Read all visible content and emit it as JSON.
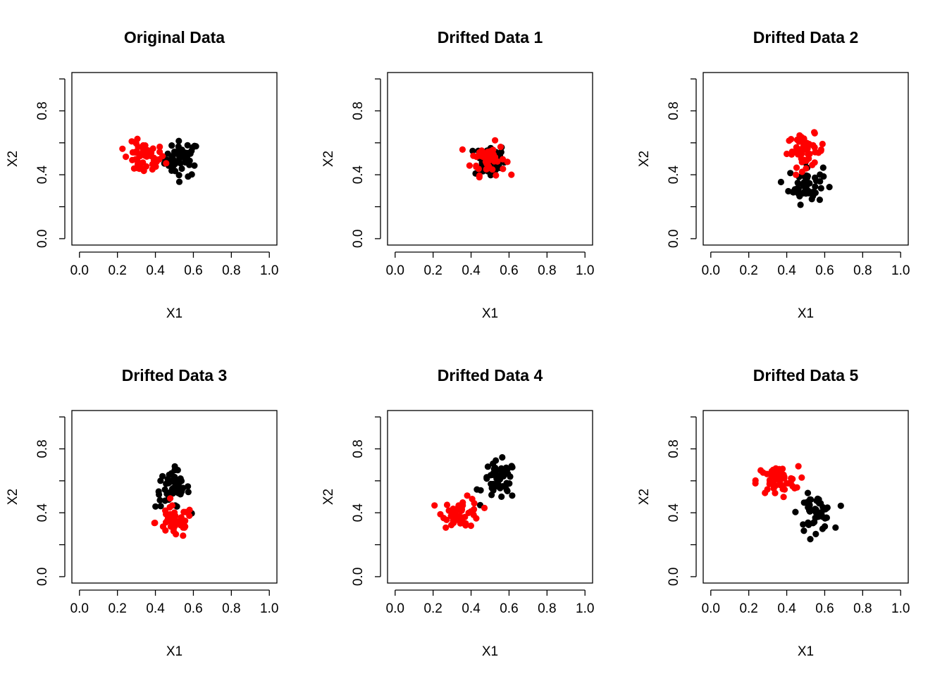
{
  "chart_data": [
    {
      "type": "scatter",
      "title": "Original Data",
      "xlabel": "X1",
      "ylabel": "X2",
      "xlim": [
        -0.04,
        1.04
      ],
      "ylim": [
        -0.04,
        1.04
      ],
      "xticks": [
        "0.0",
        "0.2",
        "0.4",
        "0.6",
        "0.8",
        "1.0"
      ],
      "yticks": [
        "0.0",
        "0.4",
        "0.8"
      ],
      "grid": false,
      "series": [
        {
          "color": "#000000",
          "center": [
            0.54,
            0.5
          ],
          "spread": [
            0.045,
            0.055
          ]
        },
        {
          "color": "#ff0000",
          "center": [
            0.34,
            0.5
          ],
          "spread": [
            0.055,
            0.05
          ]
        }
      ]
    },
    {
      "type": "scatter",
      "title": "Drifted Data 1",
      "xlabel": "X1",
      "ylabel": "X2",
      "xlim": [
        -0.04,
        1.04
      ],
      "ylim": [
        -0.04,
        1.04
      ],
      "xticks": [
        "0.0",
        "0.2",
        "0.4",
        "0.6",
        "0.8",
        "1.0"
      ],
      "yticks": [
        "0.0",
        "0.4",
        "0.8"
      ],
      "grid": false,
      "series": [
        {
          "color": "#000000",
          "center": [
            0.5,
            0.49
          ],
          "spread": [
            0.04,
            0.055
          ]
        },
        {
          "color": "#ff0000",
          "center": [
            0.49,
            0.5
          ],
          "spread": [
            0.045,
            0.05
          ]
        }
      ]
    },
    {
      "type": "scatter",
      "title": "Drifted Data 2",
      "xlabel": "X1",
      "ylabel": "X2",
      "xlim": [
        -0.04,
        1.04
      ],
      "ylim": [
        -0.04,
        1.04
      ],
      "xticks": [
        "0.0",
        "0.2",
        "0.4",
        "0.6",
        "0.8",
        "1.0"
      ],
      "yticks": [
        "0.0",
        "0.4",
        "0.8"
      ],
      "grid": false,
      "series": [
        {
          "color": "#000000",
          "center": [
            0.5,
            0.34
          ],
          "spread": [
            0.045,
            0.06
          ]
        },
        {
          "color": "#ff0000",
          "center": [
            0.5,
            0.55
          ],
          "spread": [
            0.05,
            0.05
          ]
        }
      ]
    },
    {
      "type": "scatter",
      "title": "Drifted Data 3",
      "xlabel": "X1",
      "ylabel": "X2",
      "xlim": [
        -0.04,
        1.04
      ],
      "ylim": [
        -0.04,
        1.04
      ],
      "xticks": [
        "0.0",
        "0.2",
        "0.4",
        "0.6",
        "0.8",
        "1.0"
      ],
      "yticks": [
        "0.0",
        "0.4",
        "0.8"
      ],
      "grid": false,
      "series": [
        {
          "color": "#000000",
          "center": [
            0.49,
            0.55
          ],
          "spread": [
            0.045,
            0.06
          ]
        },
        {
          "color": "#ff0000",
          "center": [
            0.5,
            0.34
          ],
          "spread": [
            0.05,
            0.05
          ]
        }
      ]
    },
    {
      "type": "scatter",
      "title": "Drifted Data 4",
      "xlabel": "X1",
      "ylabel": "X2",
      "xlim": [
        -0.04,
        1.04
      ],
      "ylim": [
        -0.04,
        1.04
      ],
      "xticks": [
        "0.0",
        "0.2",
        "0.4",
        "0.6",
        "0.8",
        "1.0"
      ],
      "yticks": [
        "0.0",
        "0.4",
        "0.8"
      ],
      "grid": false,
      "series": [
        {
          "color": "#000000",
          "center": [
            0.55,
            0.6
          ],
          "spread": [
            0.045,
            0.06
          ]
        },
        {
          "color": "#ff0000",
          "center": [
            0.35,
            0.4
          ],
          "spread": [
            0.05,
            0.045
          ]
        }
      ]
    },
    {
      "type": "scatter",
      "title": "Drifted Data 5",
      "xlabel": "X1",
      "ylabel": "X2",
      "xlim": [
        -0.04,
        1.04
      ],
      "ylim": [
        -0.04,
        1.04
      ],
      "xticks": [
        "0.0",
        "0.2",
        "0.4",
        "0.6",
        "0.8",
        "1.0"
      ],
      "yticks": [
        "0.0",
        "0.4",
        "0.8"
      ],
      "grid": false,
      "series": [
        {
          "color": "#000000",
          "center": [
            0.55,
            0.4
          ],
          "spread": [
            0.045,
            0.055
          ]
        },
        {
          "color": "#ff0000",
          "center": [
            0.35,
            0.6
          ],
          "spread": [
            0.055,
            0.045
          ]
        }
      ]
    }
  ]
}
